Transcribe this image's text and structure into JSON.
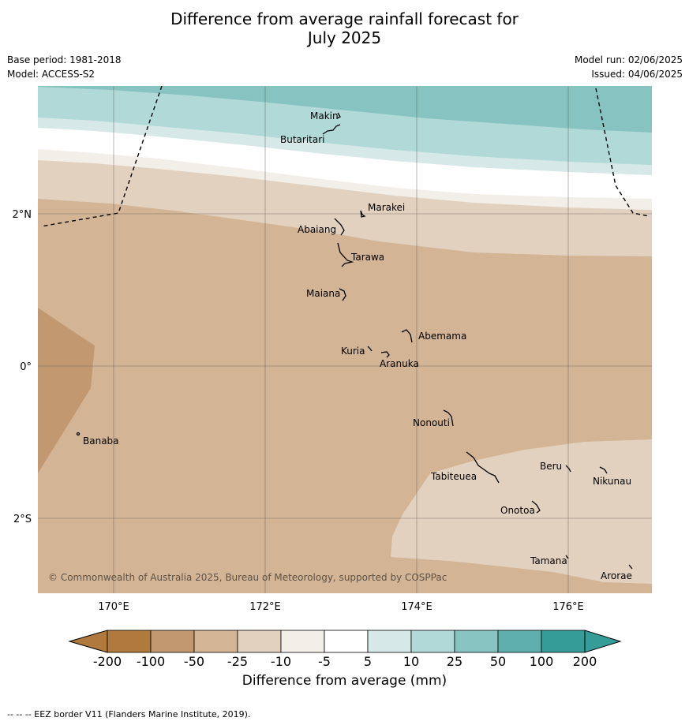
{
  "header": {
    "title_line1": "Difference from average rainfall forecast for",
    "title_line2": "July 2025",
    "base_period": "Base period: 1981-2018",
    "model": "Model: ACCESS-S2",
    "model_run": "Model run: 02/06/2025",
    "issued": "Issued: 04/06/2025"
  },
  "map": {
    "lat_labels": [
      "2°N",
      "0°",
      "2°S"
    ],
    "lon_labels": [
      "170°E",
      "172°E",
      "174°E",
      "176°E"
    ],
    "places": [
      "Makin",
      "Butaritari",
      "Marakei",
      "Abaiang",
      "Tarawa",
      "Maiana",
      "Abemama",
      "Kuria",
      "Aranuka",
      "Banaba",
      "Nonouti",
      "Beru",
      "Tabiteuea",
      "Nikunau",
      "Onotoa",
      "Tamana",
      "Arorae"
    ],
    "copyright": "© Commonwealth of Australia 2025, Bureau of Meteorology, supported by COSPPac",
    "colors": {
      "c_200_100": "#b07a3e",
      "c_100_50": "#c29870",
      "c_50_25": "#d3b494",
      "c_25_10": "#e3d1c0",
      "c_10_5": "#f2eee8",
      "c_5_5": "#ffffff",
      "c_5_10": "#d6e9e8",
      "c_10_25": "#b0d9d7",
      "c_25_50": "#86c3c1",
      "c_50_100": "#5eafac",
      "c_100_200": "#359c98"
    }
  },
  "colorbar": {
    "labels": [
      "-200",
      "-100",
      "-50",
      "-25",
      "-10",
      "-5",
      "5",
      "10",
      "25",
      "50",
      "100",
      "200"
    ],
    "colors": [
      "#b07a3e",
      "#c29870",
      "#d3b494",
      "#e3d1c0",
      "#f2eee8",
      "#ffffff",
      "#d6e9e8",
      "#b0d9d7",
      "#86c3c1",
      "#5eafac",
      "#359c98"
    ],
    "title": "Difference from average (mm)"
  },
  "footer": "--  --  -- EEZ border V11 (Flanders Marine Institute, 2019)."
}
